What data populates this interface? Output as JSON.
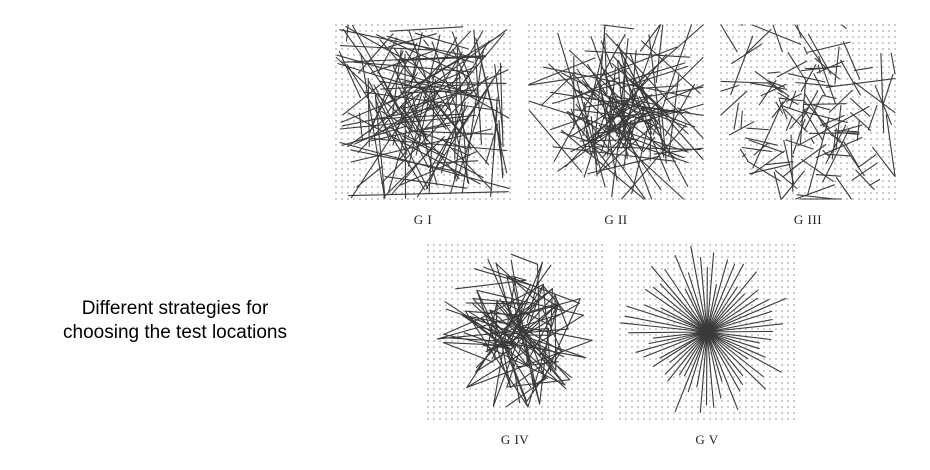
{
  "caption": {
    "line1": "Different strategies for",
    "line2": "choosing the test locations"
  },
  "panels": [
    {
      "id": "g1",
      "label": "G I",
      "strategy": "uniform"
    },
    {
      "id": "g2",
      "label": "G II",
      "strategy": "gaussian"
    },
    {
      "id": "g3",
      "label": "G III",
      "strategy": "gaussian-second-point-around-first"
    },
    {
      "id": "g4",
      "label": "G IV",
      "strategy": "coarse-polar-grid"
    },
    {
      "id": "g5",
      "label": "G V",
      "strategy": "center-to-polar-grid"
    }
  ],
  "colors": {
    "line": "#3a3a3a",
    "dot": "#c8c8c8",
    "text": "#000000"
  }
}
